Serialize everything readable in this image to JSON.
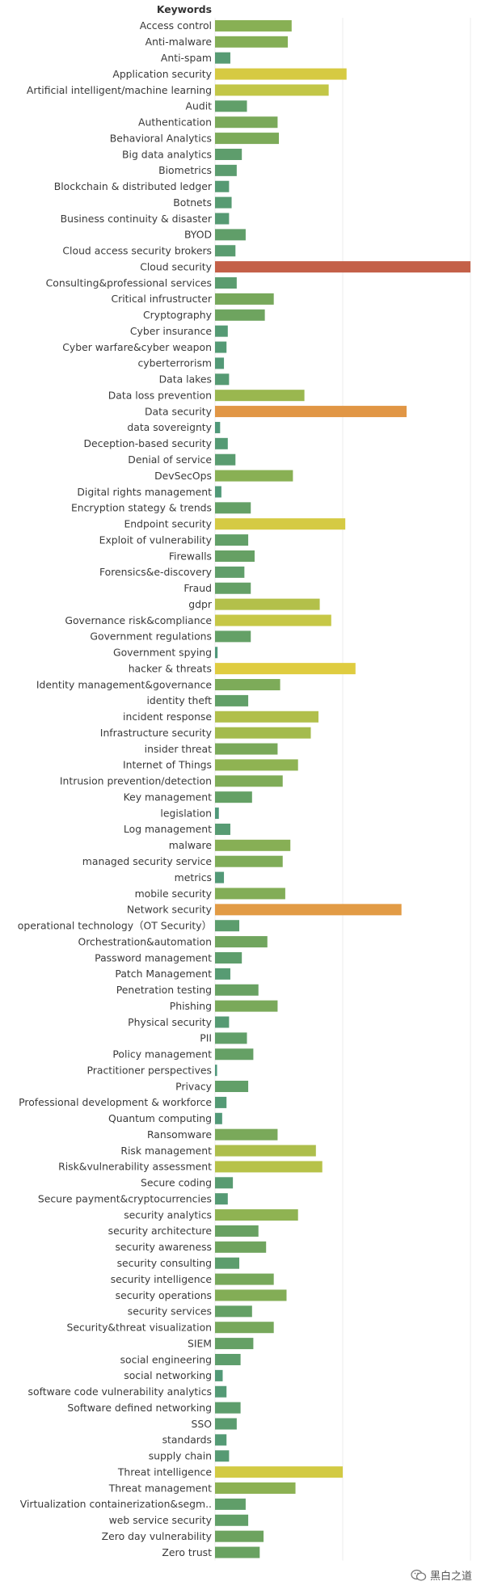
{
  "chart_data": {
    "type": "bar",
    "orientation": "horizontal",
    "header": "Keywords",
    "grid": true,
    "xlim": [
      0,
      100
    ],
    "categories": [
      "Access control",
      "Anti-malware",
      "Anti-spam",
      "Application security",
      "Artificial intelligent/machine learning",
      "Audit",
      "Authentication",
      "Behavioral Analytics",
      "Big data analytics",
      "Biometrics",
      "Blockchain & distributed ledger",
      "Botnets",
      "Business continuity & disaster",
      "BYOD",
      "Cloud access security brokers",
      "Cloud security",
      "Consulting&professional services",
      "Critical infrustructer",
      "Cryptography",
      "Cyber insurance",
      "Cyber warfare&cyber weapon",
      "cyberterrorism",
      "Data lakes",
      "Data loss prevention",
      "Data security",
      "data sovereignty",
      "Deception-based security",
      "Denial of service",
      "DevSecOps",
      "Digital rights management",
      "Encryption stategy & trends",
      "Endpoint security",
      "Exploit of vulnerability",
      "Firewalls",
      "Forensics&e-discovery",
      "Fraud",
      "gdpr",
      "Governance risk&compliance",
      "Government regulations",
      "Government spying",
      "hacker & threats",
      "Identity management&governance",
      "identity theft",
      "incident response",
      "Infrastructure security",
      "insider threat",
      "Internet of Things",
      "Intrusion prevention/detection",
      "Key management",
      "legislation",
      "Log management",
      "malware",
      "managed security service",
      "metrics",
      "mobile security",
      "Network security",
      "operational technology（OT Security）",
      "Orchestration&automation",
      "Password management",
      "Patch Management",
      "Penetration testing",
      "Phishing",
      "Physical security",
      "PII",
      "Policy management",
      "Practitioner perspectives",
      "Privacy",
      "Professional development & workforce",
      "Quantum computing",
      "Ransomware",
      "Risk management",
      "Risk&vulnerability assessment",
      "Secure coding",
      "Secure payment&cryptocurrencies",
      "security analytics",
      "security architecture",
      "security awareness",
      "security consulting",
      "security intelligence",
      "security operations",
      "security services",
      "Security&threat visualization",
      "SIEM",
      "social engineering",
      "social networking",
      "software code vulnerability analytics",
      "Software defined networking",
      "SSO",
      "standards",
      "supply chain",
      "Threat intelligence",
      "Threat management",
      "Virtualization containerization&segm..",
      "web service security",
      "Zero day vulnerability",
      "Zero trust"
    ],
    "values": [
      30,
      28.5,
      6,
      51.5,
      44.5,
      12.5,
      24.5,
      25,
      10.5,
      8.5,
      5.5,
      6.5,
      5.5,
      12,
      8,
      100,
      8.5,
      23,
      19.5,
      5,
      4.5,
      3.5,
      5.5,
      35,
      75,
      2,
      5,
      8,
      30.5,
      2.5,
      14,
      51,
      13,
      15.5,
      11.5,
      14,
      41,
      45.5,
      14,
      1,
      55,
      25.5,
      13,
      40.5,
      37.5,
      24.5,
      32.5,
      26.5,
      14.5,
      1.5,
      6,
      29.5,
      26.5,
      3.5,
      27.5,
      73,
      9.5,
      20.5,
      10.5,
      6,
      17,
      24.5,
      5.5,
      12.5,
      15,
      0.8,
      13,
      4.5,
      2.8,
      24.5,
      39.5,
      42,
      7,
      5,
      32.5,
      17,
      20,
      9.5,
      23,
      28,
      14.5,
      23,
      15,
      10,
      3,
      4.5,
      10,
      8.5,
      4.5,
      5.5,
      50,
      31.5,
      12,
      13,
      19,
      17.5
    ]
  },
  "watermark": {
    "text": "黑白之道",
    "icon": "wechat-icon"
  }
}
